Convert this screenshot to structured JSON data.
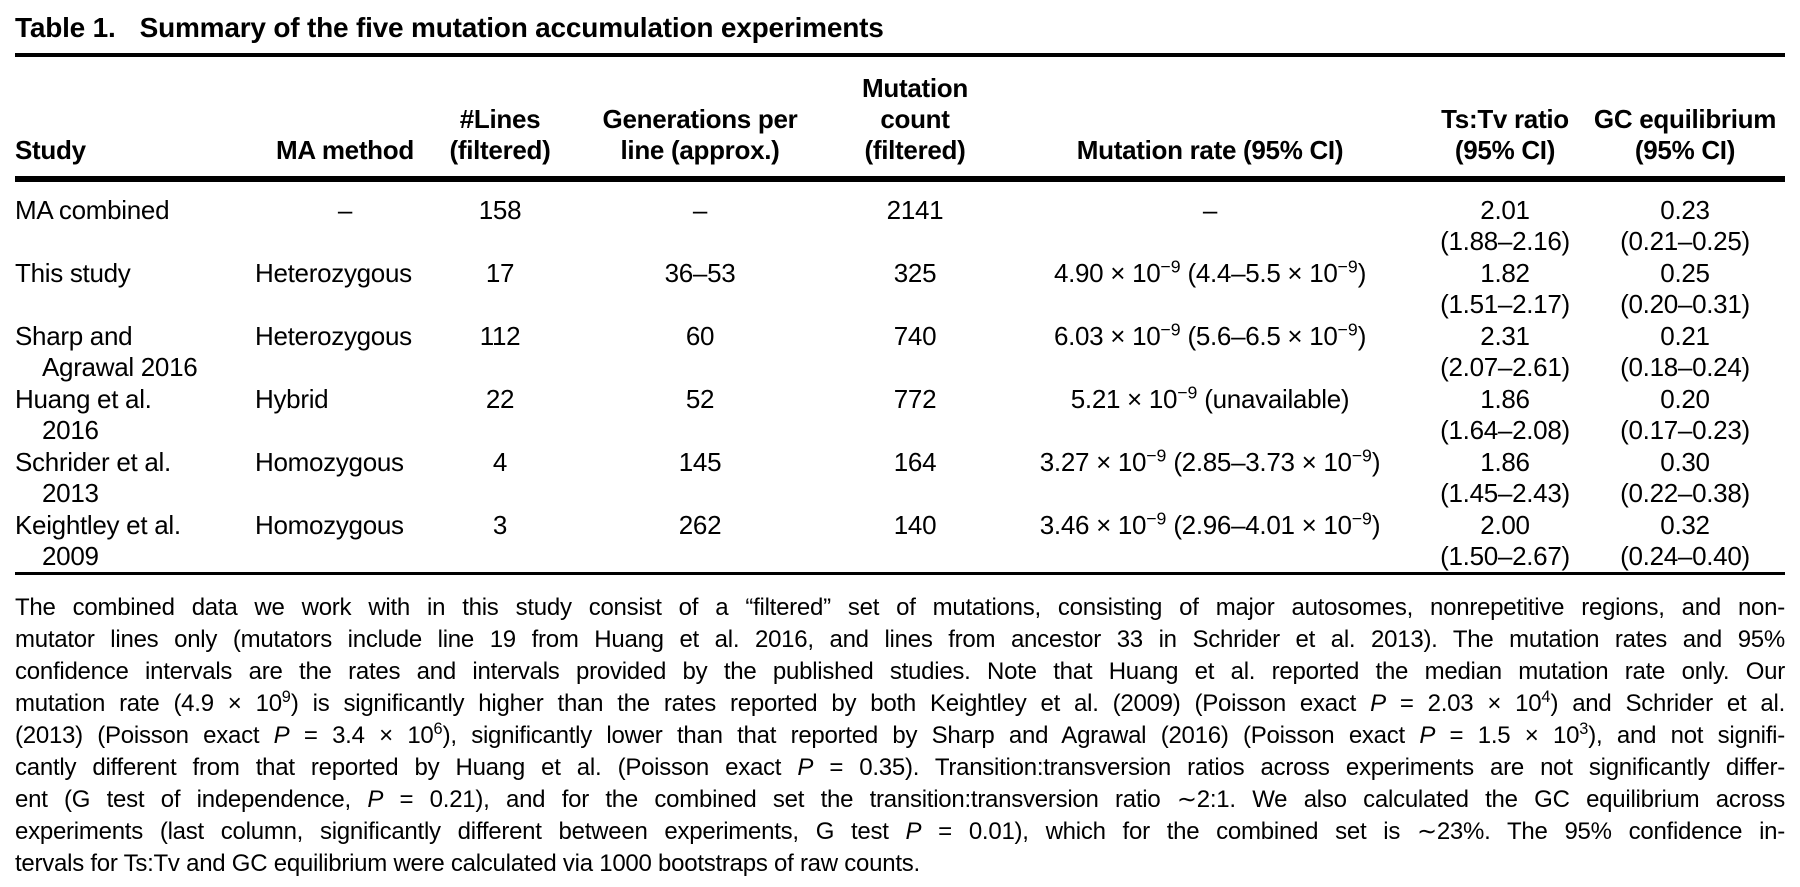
{
  "page": {
    "title_label": "Table 1.",
    "title_text": "Summary of the five mutation accumulation experiments"
  },
  "table": {
    "headers": {
      "study": "Study",
      "method": "MA method",
      "lines_1": "#Lines",
      "lines_2": "(filtered)",
      "gen_1": "Generations per",
      "gen_2": "line (approx.)",
      "count_1": "Mutation",
      "count_2": "count",
      "count_3": "(filtered)",
      "rate": "Mutation rate (95% CI)",
      "tstv_1": "Ts:Tv ratio",
      "tstv_2": "(95% CI)",
      "gc_1": "GC equilibrium",
      "gc_2": "(95% CI)"
    },
    "rows": [
      {
        "study_1": "MA combined",
        "study_2": "",
        "method": "–",
        "lines": "158",
        "generations": "–",
        "count": "2141",
        "rate": "–",
        "tstv": "2.01",
        "tstv_ci": "(1.88–2.16)",
        "gc": "0.23",
        "gc_ci": "(0.21–0.25)"
      },
      {
        "study_1": "This study",
        "study_2": "",
        "method": "Heterozygous",
        "lines": "17",
        "generations": "36–53",
        "count": "325",
        "rate": "4.90 × 10^{−9} (4.4–5.5 × 10^{−9})",
        "tstv": "1.82",
        "tstv_ci": "(1.51–2.17)",
        "gc": "0.25",
        "gc_ci": "(0.20–0.31)"
      },
      {
        "study_1": "Sharp and",
        "study_2": "Agrawal 2016",
        "method": "Heterozygous",
        "lines": "112",
        "generations": "60",
        "count": "740",
        "rate": "6.03 × 10^{−9} (5.6–6.5 × 10^{−9})",
        "tstv": "2.31",
        "tstv_ci": "(2.07–2.61)",
        "gc": "0.21",
        "gc_ci": "(0.18–0.24)"
      },
      {
        "study_1": "Huang et al.",
        "study_2": "2016",
        "method": "Hybrid",
        "lines": "22",
        "generations": "52",
        "count": "772",
        "rate": "5.21 × 10^{−9} (unavailable)",
        "tstv": "1.86",
        "tstv_ci": "(1.64–2.08)",
        "gc": "0.20",
        "gc_ci": "(0.17–0.23)"
      },
      {
        "study_1": "Schrider et al.",
        "study_2": "2013",
        "method": "Homozygous",
        "lines": "4",
        "generations": "145",
        "count": "164",
        "rate": "3.27 × 10^{−9} (2.85–3.73 × 10^{−9})",
        "tstv": "1.86",
        "tstv_ci": "(1.45–2.43)",
        "gc": "0.30",
        "gc_ci": "(0.22–0.38)"
      },
      {
        "study_1": "Keightley et al.",
        "study_2": "2009",
        "method": "Homozygous",
        "lines": "3",
        "generations": "262",
        "count": "140",
        "rate": "3.46 × 10^{−9} (2.96–4.01 × 10^{−9})",
        "tstv": "2.00",
        "tstv_ci": "(1.50–2.67)",
        "gc": "0.32",
        "gc_ci": "(0.24–0.40)"
      }
    ]
  },
  "footnote": {
    "lines": [
      "The combined data we work with in this study consist of a “filtered” set of mutations, consisting of major autosomes, nonrepetitive regions, and non-",
      "mutator lines only (mutators include line 19 from Huang et al. 2016, and lines from ancestor 33 in Schrider et al. 2013). The mutation rates and 95%",
      "confidence intervals are the rates and intervals provided by the published studies. Note that Huang et al. reported the median mutation rate only. Our",
      "mutation rate (4.9 × 10^{9}) is significantly higher than the rates reported by both Keightley et al. (2009) (Poisson exact _P_ = 2.03 × 10^{4}) and Schrider et al.",
      "(2013) (Poisson exact _P_ = 3.4 × 10^{6}), significantly lower than that reported by Sharp and Agrawal (2016) (Poisson exact _P_ = 1.5 × 10^{3}), and not signifi-",
      "cantly different from that reported by Huang et al. (Poisson exact _P_ = 0.35). Transition:transversion ratios across experiments are not significantly differ-",
      "ent (G test of independence, _P_ = 0.21), and for the combined set the transition:transversion ratio ∼2:1. We also calculated the GC equilibrium across",
      "experiments (last column, significantly different between experiments, G test _P_ = 0.01), which for the combined set is ∼23%. The 95% confidence in-",
      "tervals for Ts:Tv and GC equilibrium were calculated via 1000 bootstraps of raw counts."
    ]
  }
}
